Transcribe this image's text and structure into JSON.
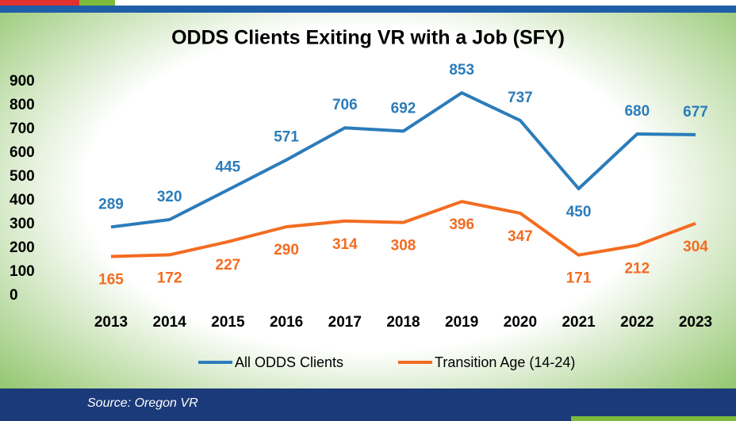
{
  "chart_data": {
    "type": "line",
    "title": "ODDS Clients Exiting VR with a Job (SFY)",
    "categories": [
      "2013",
      "2014",
      "2015",
      "2016",
      "2017",
      "2018",
      "2019",
      "2020",
      "2021",
      "2022",
      "2023"
    ],
    "series": [
      {
        "name": "All ODDS Clients",
        "color": "#2b7cba",
        "values": [
          289,
          320,
          445,
          571,
          706,
          692,
          853,
          737,
          450,
          680,
          677
        ]
      },
      {
        "name": "Transition Age (14-24)",
        "color": "#f36c21",
        "values": [
          165,
          172,
          227,
          290,
          314,
          308,
          396,
          347,
          171,
          212,
          304
        ]
      }
    ],
    "ylim": [
      0,
      900
    ],
    "yticks": [
      0,
      100,
      200,
      300,
      400,
      500,
      600,
      700,
      800,
      900
    ],
    "grid": false,
    "legend": "bottom",
    "source": "Source: Oregon VR"
  }
}
